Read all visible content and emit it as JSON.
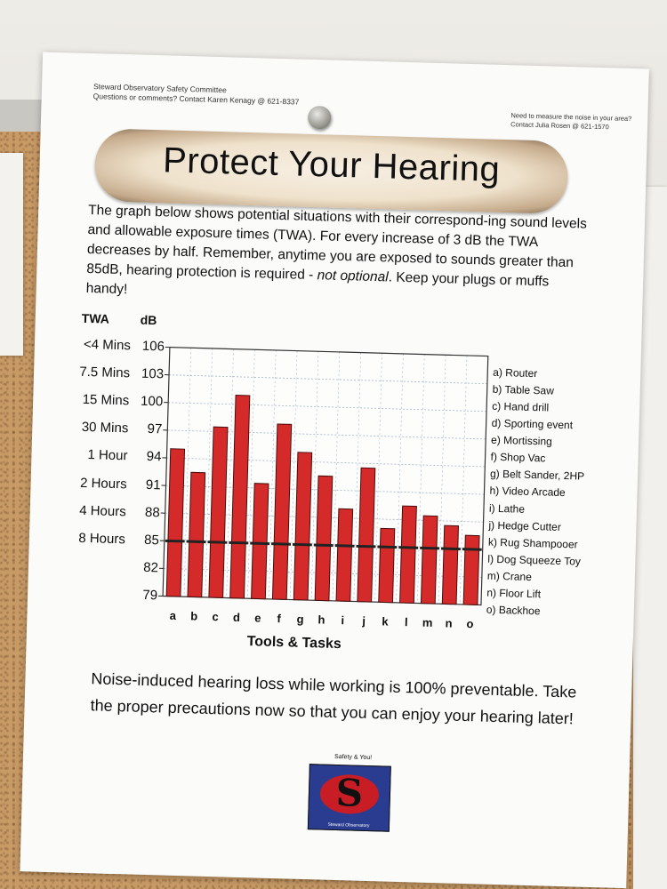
{
  "header": {
    "org_line1": "Steward Observatory Safety Committee",
    "org_line2": "Questions or comments?  Contact Karen Kenagy @ 621-8337",
    "measure_line1": "Need to measure the noise in your area?",
    "measure_line2": "Contact Julia Rosen @ 621-1570"
  },
  "title": "Protect Your Hearing",
  "intro": {
    "before_italic": "The graph below shows potential situations with their correspond-ing sound levels and allowable exposure times (TWA).  For every increase of 3 dB the TWA decreases by half.  Remember, anytime you are exposed to sounds greater than 85dB, hearing protection is required - ",
    "italic": "not optional",
    "after_italic": ".  Keep your plugs or muffs handy!"
  },
  "chart_data": {
    "type": "bar",
    "column_headers": {
      "twa": "TWA",
      "db": "dB"
    },
    "twa_labels": [
      "<4 Mins",
      "7.5 Mins",
      "15 Mins",
      "30 Mins",
      "1 Hour",
      "2 Hours",
      "4 Hours",
      "8 Hours"
    ],
    "y_ticks": [
      "106",
      "103",
      "100",
      "97",
      "94",
      "91",
      "88",
      "85",
      "82",
      "79"
    ],
    "ylim": [
      79,
      106
    ],
    "xlabel": "Tools & Tasks",
    "categories": [
      "a",
      "b",
      "c",
      "d",
      "e",
      "f",
      "g",
      "h",
      "i",
      "j",
      "k",
      "l",
      "m",
      "n",
      "o"
    ],
    "values": [
      95,
      92.5,
      97.5,
      101,
      91.5,
      98,
      95,
      92.5,
      89,
      93.5,
      87,
      89.5,
      88.5,
      87.5,
      86.5
    ],
    "threshold_values": [
      85,
      85,
      85,
      85,
      85,
      85,
      85,
      85,
      85,
      85,
      85,
      85,
      85,
      85,
      85
    ],
    "legend": [
      "a) Router",
      "b) Table Saw",
      "c) Hand drill",
      "d) Sporting event",
      "e) Mortissing",
      "f) Shop Vac",
      "g) Belt Sander, 2HP",
      "h) Video Arcade",
      "i) Lathe",
      "j) Hedge Cutter",
      "k) Rug Shampooer",
      "l) Dog Squeeze Toy",
      "m) Crane",
      "n) Floor Lift",
      "o) Backhoe"
    ],
    "colors": {
      "bar": "#d42a2a",
      "threshold": "#222222",
      "grid": "#9fb4c8"
    }
  },
  "footer": {
    "message": "Noise-induced hearing loss while working is 100% preventable.  Take the proper precautions now so that you can enjoy your hearing later!"
  },
  "logo": {
    "caption": "Safety & You!",
    "letter": "S",
    "footer": "Steward Observatory"
  }
}
